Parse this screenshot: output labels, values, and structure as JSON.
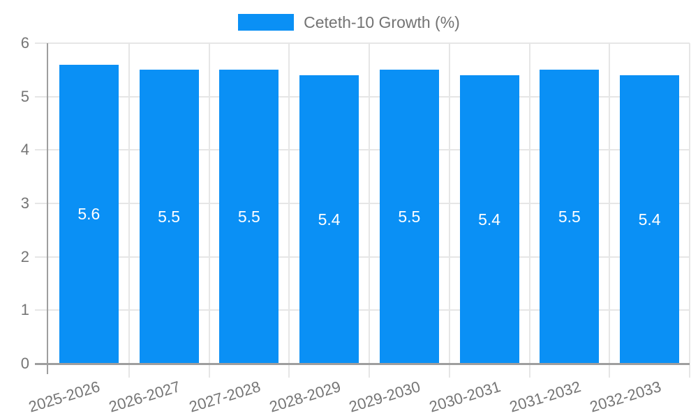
{
  "legend": {
    "label": "Ceteth-10 Growth (%)"
  },
  "chart_data": {
    "type": "bar",
    "title": "",
    "categories": [
      "2025-2026",
      "2026-2027",
      "2027-2028",
      "2028-2029",
      "2029-2030",
      "2030-2031",
      "2031-2032",
      "2032-2033"
    ],
    "series": [
      {
        "name": "Ceteth-10 Growth (%)",
        "values": [
          5.6,
          5.5,
          5.5,
          5.4,
          5.5,
          5.4,
          5.5,
          5.4
        ],
        "value_labels": [
          "5.6",
          "5.5",
          "5.5",
          "5.4",
          "5.5",
          "5.4",
          "5.5",
          "5.4"
        ]
      }
    ],
    "xlabel": "",
    "ylabel": "",
    "ylim": [
      0,
      6
    ],
    "yticks": [
      0,
      1,
      2,
      3,
      4,
      5,
      6
    ],
    "grid": true,
    "legend_position": "top",
    "colors": {
      "bar": "#0a90f5",
      "grid": "#e6e6e6",
      "axis": "#9e9e9e",
      "tick_text": "#757575",
      "value_text": "#ffffff",
      "legend_text": "#737373"
    }
  }
}
